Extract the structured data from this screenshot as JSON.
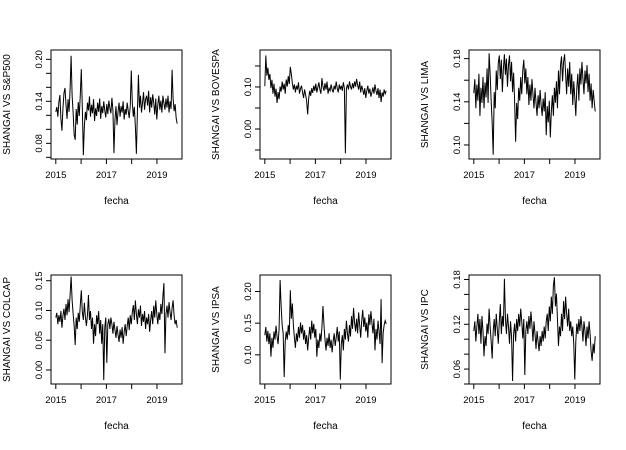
{
  "page": {
    "background": "#ffffff",
    "foreground": "#000000"
  },
  "chart_data": [
    {
      "type": "line",
      "title": "",
      "ylabel": "SHANGAI VS S&P500",
      "xlabel": "fecha",
      "grid": false,
      "legend": "none",
      "line_color": "#000000",
      "x_start": 2015.0,
      "x_end": 2019.8,
      "xlim": [
        2014.81,
        2019.99
      ],
      "ylim": [
        0.0576,
        0.2133
      ],
      "x_ticks": [
        {
          "v": 2015,
          "label": "2015"
        },
        {
          "v": 2016,
          "label": ""
        },
        {
          "v": 2017,
          "label": "2017"
        },
        {
          "v": 2018,
          "label": ""
        },
        {
          "v": 2019,
          "label": "2019"
        }
      ],
      "y_ticks": [
        {
          "v": 0.06,
          "label": ""
        },
        {
          "v": 0.08,
          "label": "0.08"
        },
        {
          "v": 0.1,
          "label": ""
        },
        {
          "v": 0.12,
          "label": ""
        },
        {
          "v": 0.14,
          "label": "0.14"
        },
        {
          "v": 0.16,
          "label": ""
        },
        {
          "v": 0.18,
          "label": ""
        },
        {
          "v": 0.2,
          "label": "0.20"
        }
      ],
      "values": [
        0.125,
        0.132,
        0.118,
        0.139,
        0.149,
        0.115,
        0.098,
        0.13,
        0.152,
        0.159,
        0.135,
        0.115,
        0.143,
        0.125,
        0.157,
        0.205,
        0.148,
        0.123,
        0.092,
        0.085,
        0.129,
        0.107,
        0.139,
        0.119,
        0.149,
        0.186,
        0.131,
        0.063,
        0.105,
        0.125,
        0.113,
        0.138,
        0.127,
        0.147,
        0.118,
        0.135,
        0.123,
        0.143,
        0.112,
        0.13,
        0.119,
        0.138,
        0.125,
        0.144,
        0.115,
        0.133,
        0.123,
        0.14,
        0.127,
        0.117,
        0.136,
        0.122,
        0.141,
        0.13,
        0.123,
        0.145,
        0.127,
        0.066,
        0.114,
        0.133,
        0.106,
        0.125,
        0.138,
        0.118,
        0.133,
        0.124,
        0.14,
        0.114,
        0.129,
        0.121,
        0.138,
        0.126,
        0.116,
        0.134,
        0.184,
        0.138,
        0.118,
        0.132,
        0.104,
        0.065,
        0.125,
        0.178,
        0.131,
        0.148,
        0.124,
        0.138,
        0.153,
        0.128,
        0.143,
        0.148,
        0.134,
        0.155,
        0.124,
        0.146,
        0.131,
        0.15,
        0.138,
        0.121,
        0.144,
        0.114,
        0.135,
        0.148,
        0.128,
        0.141,
        0.124,
        0.148,
        0.137,
        0.128,
        0.144,
        0.131,
        0.148,
        0.124,
        0.14,
        0.129,
        0.185,
        0.143,
        0.126,
        0.136,
        0.116,
        0.108
      ]
    },
    {
      "type": "line",
      "title": "",
      "ylabel": "SHANGAI VS BOVESPA",
      "xlabel": "fecha",
      "grid": false,
      "legend": "none",
      "line_color": "#000000",
      "x_start": 2015.0,
      "x_end": 2019.8,
      "xlim": [
        2014.81,
        2019.99
      ],
      "ylim": [
        -0.0714,
        0.188
      ],
      "x_ticks": [
        {
          "v": 2015,
          "label": "2015"
        },
        {
          "v": 2016,
          "label": ""
        },
        {
          "v": 2017,
          "label": "2017"
        },
        {
          "v": 2018,
          "label": ""
        },
        {
          "v": 2019,
          "label": "2019"
        }
      ],
      "y_ticks": [
        {
          "v": -0.05,
          "label": ""
        },
        {
          "v": 0.0,
          "label": "0.00"
        },
        {
          "v": 0.05,
          "label": ""
        },
        {
          "v": 0.1,
          "label": "0.10"
        },
        {
          "v": 0.15,
          "label": ""
        }
      ],
      "values": [
        0.102,
        0.175,
        0.127,
        0.146,
        0.117,
        0.131,
        0.097,
        0.117,
        0.084,
        0.108,
        0.077,
        0.096,
        0.062,
        0.088,
        0.071,
        0.101,
        0.089,
        0.113,
        0.094,
        0.108,
        0.084,
        0.118,
        0.101,
        0.126,
        0.107,
        0.148,
        0.131,
        0.109,
        0.094,
        0.106,
        0.087,
        0.103,
        0.094,
        0.111,
        0.084,
        0.096,
        0.103,
        0.087,
        0.074,
        0.094,
        0.081,
        0.067,
        0.035,
        0.072,
        0.091,
        0.079,
        0.097,
        0.086,
        0.103,
        0.091,
        0.108,
        0.087,
        0.099,
        0.111,
        0.094,
        0.084,
        0.121,
        0.101,
        0.091,
        0.109,
        0.094,
        0.113,
        0.084,
        0.097,
        0.091,
        0.106,
        0.094,
        0.087,
        0.103,
        0.094,
        0.113,
        0.097,
        0.087,
        0.106,
        0.094,
        0.103,
        0.091,
        0.111,
        0.097,
        -0.058,
        0.096,
        0.106,
        0.094,
        0.113,
        0.101,
        0.094,
        0.109,
        0.097,
        0.113,
        0.101,
        0.119,
        0.104,
        0.094,
        0.113,
        0.087,
        0.103,
        0.094,
        0.081,
        0.097,
        0.074,
        0.091,
        0.103,
        0.084,
        0.096,
        0.077,
        0.087,
        0.099,
        0.084,
        0.106,
        0.091,
        0.081,
        0.097,
        0.074,
        0.094,
        0.064,
        0.087,
        0.077,
        0.094,
        0.084,
        0.091
      ]
    },
    {
      "type": "line",
      "title": "",
      "ylabel": "SHANGAI VS LIMA",
      "xlabel": "fecha",
      "grid": false,
      "legend": "none",
      "line_color": "#000000",
      "x_start": 2015.0,
      "x_end": 2019.8,
      "xlim": [
        2014.81,
        2019.99
      ],
      "ylim": [
        0.087,
        0.188
      ],
      "x_ticks": [
        {
          "v": 2015,
          "label": "2015"
        },
        {
          "v": 2016,
          "label": ""
        },
        {
          "v": 2017,
          "label": "2017"
        },
        {
          "v": 2018,
          "label": ""
        },
        {
          "v": 2019,
          "label": "2019"
        }
      ],
      "y_ticks": [
        {
          "v": 0.1,
          "label": "0.10"
        },
        {
          "v": 0.12,
          "label": ""
        },
        {
          "v": 0.14,
          "label": "0.14"
        },
        {
          "v": 0.16,
          "label": ""
        },
        {
          "v": 0.18,
          "label": "0.18"
        }
      ],
      "values": [
        0.148,
        0.161,
        0.134,
        0.156,
        0.141,
        0.166,
        0.127,
        0.153,
        0.139,
        0.163,
        0.134,
        0.158,
        0.144,
        0.171,
        0.139,
        0.185,
        0.166,
        0.141,
        0.121,
        0.091,
        0.149,
        0.134,
        0.169,
        0.151,
        0.176,
        0.183,
        0.161,
        0.179,
        0.149,
        0.171,
        0.184,
        0.165,
        0.18,
        0.154,
        0.174,
        0.183,
        0.159,
        0.177,
        0.149,
        0.167,
        0.141,
        0.103,
        0.139,
        0.124,
        0.153,
        0.141,
        0.163,
        0.147,
        0.169,
        0.179,
        0.157,
        0.171,
        0.147,
        0.163,
        0.137,
        0.156,
        0.141,
        0.161,
        0.147,
        0.134,
        0.153,
        0.139,
        0.127,
        0.146,
        0.134,
        0.151,
        0.137,
        0.127,
        0.143,
        0.131,
        0.149,
        0.109,
        0.136,
        0.121,
        0.141,
        0.107,
        0.131,
        0.146,
        0.127,
        0.153,
        0.139,
        0.159,
        0.134,
        0.169,
        0.147,
        0.174,
        0.182,
        0.159,
        0.177,
        0.184,
        0.166,
        0.147,
        0.171,
        0.154,
        0.177,
        0.147,
        0.166,
        0.137,
        0.159,
        0.144,
        0.127,
        0.153,
        0.166,
        0.141,
        0.171,
        0.156,
        0.177,
        0.161,
        0.147,
        0.169,
        0.157,
        0.174,
        0.149,
        0.166,
        0.141,
        0.157,
        0.134,
        0.151,
        0.141,
        0.131
      ]
    },
    {
      "type": "line",
      "title": "",
      "ylabel": "SHANGAI VS COLCAP",
      "xlabel": "fecha",
      "grid": false,
      "legend": "none",
      "line_color": "#000000",
      "x_start": 2015.0,
      "x_end": 2019.8,
      "xlim": [
        2014.81,
        2019.99
      ],
      "ylim": [
        -0.0236,
        0.1596
      ],
      "x_ticks": [
        {
          "v": 2015,
          "label": "2015"
        },
        {
          "v": 2016,
          "label": ""
        },
        {
          "v": 2017,
          "label": "2017"
        },
        {
          "v": 2018,
          "label": ""
        },
        {
          "v": 2019,
          "label": "2019"
        }
      ],
      "y_ticks": [
        {
          "v": 0.0,
          "label": "0.00"
        },
        {
          "v": 0.05,
          "label": "0.05"
        },
        {
          "v": 0.1,
          "label": "0.10"
        },
        {
          "v": 0.15,
          "label": "0.15"
        }
      ],
      "values": [
        0.088,
        0.096,
        0.077,
        0.092,
        0.081,
        0.099,
        0.071,
        0.091,
        0.103,
        0.084,
        0.111,
        0.092,
        0.119,
        0.097,
        0.126,
        0.157,
        0.117,
        0.094,
        0.074,
        0.042,
        0.088,
        0.069,
        0.096,
        0.081,
        0.109,
        0.134,
        0.097,
        0.084,
        0.113,
        0.089,
        0.074,
        0.092,
        0.126,
        0.084,
        0.099,
        0.069,
        0.088,
        0.044,
        0.077,
        0.057,
        0.092,
        0.077,
        0.099,
        0.061,
        0.084,
        0.044,
        0.077,
        -0.017,
        0.071,
        0.088,
        0.012,
        0.077,
        0.086,
        0.069,
        0.088,
        0.077,
        0.061,
        0.081,
        0.067,
        0.054,
        0.074,
        0.059,
        0.047,
        0.068,
        0.054,
        0.072,
        0.044,
        0.064,
        0.077,
        0.057,
        0.074,
        0.088,
        0.067,
        0.092,
        0.077,
        0.097,
        0.109,
        0.084,
        0.117,
        0.094,
        0.077,
        0.102,
        0.088,
        0.108,
        0.074,
        0.094,
        0.081,
        0.099,
        0.069,
        0.088,
        0.077,
        0.094,
        0.064,
        0.084,
        0.099,
        0.077,
        0.108,
        0.088,
        0.117,
        0.094,
        0.077,
        0.097,
        0.084,
        0.111,
        0.094,
        0.124,
        0.146,
        0.028,
        0.094,
        0.108,
        0.088,
        0.114,
        0.097,
        0.084,
        0.104,
        0.117,
        0.091,
        0.077,
        0.084,
        0.071
      ]
    },
    {
      "type": "line",
      "title": "",
      "ylabel": "SHANGAI VS IPSA",
      "xlabel": "fecha",
      "grid": false,
      "legend": "none",
      "line_color": "#000000",
      "x_start": 2015.0,
      "x_end": 2019.8,
      "xlim": [
        2014.81,
        2019.99
      ],
      "ylim": [
        0.054,
        0.226
      ],
      "x_ticks": [
        {
          "v": 2015,
          "label": "2015"
        },
        {
          "v": 2016,
          "label": ""
        },
        {
          "v": 2017,
          "label": "2017"
        },
        {
          "v": 2018,
          "label": ""
        },
        {
          "v": 2019,
          "label": "2019"
        }
      ],
      "y_ticks": [
        {
          "v": 0.1,
          "label": "0.10"
        },
        {
          "v": 0.15,
          "label": "0.15"
        },
        {
          "v": 0.2,
          "label": "0.20"
        }
      ],
      "values": [
        0.131,
        0.144,
        0.121,
        0.138,
        0.117,
        0.134,
        0.097,
        0.127,
        0.111,
        0.137,
        0.124,
        0.146,
        0.129,
        0.117,
        0.141,
        0.218,
        0.177,
        0.147,
        0.134,
        0.065,
        0.121,
        0.137,
        0.124,
        0.147,
        0.131,
        0.202,
        0.157,
        0.181,
        0.147,
        0.127,
        0.111,
        0.134,
        0.121,
        0.144,
        0.127,
        0.151,
        0.134,
        0.147,
        0.124,
        0.139,
        0.117,
        0.131,
        0.107,
        0.127,
        0.144,
        0.124,
        0.154,
        0.134,
        0.149,
        0.127,
        0.141,
        0.097,
        0.124,
        0.111,
        0.134,
        0.121,
        0.144,
        0.177,
        0.147,
        0.124,
        0.107,
        0.127,
        0.114,
        0.134,
        0.111,
        0.124,
        0.104,
        0.121,
        0.134,
        0.114,
        0.127,
        0.144,
        0.121,
        0.137,
        0.061,
        0.117,
        0.131,
        0.107,
        0.141,
        0.124,
        0.154,
        0.134,
        0.121,
        0.147,
        0.129,
        0.161,
        0.141,
        0.174,
        0.151,
        0.137,
        0.157,
        0.134,
        0.167,
        0.147,
        0.127,
        0.154,
        0.171,
        0.144,
        0.159,
        0.137,
        0.151,
        0.127,
        0.164,
        0.147,
        0.169,
        0.151,
        0.134,
        0.157,
        0.107,
        0.141,
        0.124,
        0.154,
        0.137,
        0.117,
        0.188,
        0.087,
        0.134,
        0.147,
        0.154,
        0.149
      ]
    },
    {
      "type": "line",
      "title": "",
      "ylabel": "SHANGAI VS IPC",
      "xlabel": "fecha",
      "grid": false,
      "legend": "none",
      "line_color": "#000000",
      "x_start": 2015.0,
      "x_end": 2019.8,
      "xlim": [
        2014.81,
        2019.99
      ],
      "ylim": [
        0.04,
        0.186
      ],
      "x_ticks": [
        {
          "v": 2015,
          "label": "2015"
        },
        {
          "v": 2016,
          "label": ""
        },
        {
          "v": 2017,
          "label": "2017"
        },
        {
          "v": 2018,
          "label": ""
        },
        {
          "v": 2019,
          "label": "2019"
        }
      ],
      "y_ticks": [
        {
          "v": 0.04,
          "label": ""
        },
        {
          "v": 0.06,
          "label": "0.06"
        },
        {
          "v": 0.08,
          "label": ""
        },
        {
          "v": 0.1,
          "label": ""
        },
        {
          "v": 0.12,
          "label": "0.12"
        },
        {
          "v": 0.14,
          "label": ""
        },
        {
          "v": 0.16,
          "label": ""
        },
        {
          "v": 0.18,
          "label": "0.18"
        }
      ],
      "values": [
        0.111,
        0.124,
        0.097,
        0.117,
        0.134,
        0.107,
        0.127,
        0.094,
        0.131,
        0.111,
        0.077,
        0.104,
        0.091,
        0.121,
        0.107,
        0.141,
        0.117,
        0.097,
        0.074,
        0.111,
        0.127,
        0.104,
        0.134,
        0.114,
        0.094,
        0.124,
        0.147,
        0.107,
        0.131,
        0.117,
        0.181,
        0.127,
        0.107,
        0.134,
        0.117,
        0.094,
        0.124,
        0.104,
        0.044,
        0.107,
        0.121,
        0.097,
        0.127,
        0.111,
        0.134,
        0.117,
        0.141,
        0.124,
        0.101,
        0.127,
        0.052,
        0.111,
        0.124,
        0.107,
        0.131,
        0.114,
        0.137,
        0.119,
        0.097,
        0.124,
        0.107,
        0.087,
        0.111,
        0.097,
        0.084,
        0.104,
        0.091,
        0.111,
        0.097,
        0.117,
        0.101,
        0.124,
        0.134,
        0.111,
        0.144,
        0.124,
        0.157,
        0.134,
        0.171,
        0.183,
        0.144,
        0.161,
        0.127,
        0.091,
        0.117,
        0.104,
        0.134,
        0.111,
        0.151,
        0.127,
        0.157,
        0.134,
        0.117,
        0.141,
        0.111,
        0.124,
        0.104,
        0.117,
        0.094,
        0.046,
        0.097,
        0.121,
        0.107,
        0.127,
        0.111,
        0.131,
        0.117,
        0.097,
        0.124,
        0.111,
        0.091,
        0.117,
        0.101,
        0.124,
        0.107,
        0.084,
        0.071,
        0.094,
        0.081,
        0.104
      ]
    }
  ]
}
